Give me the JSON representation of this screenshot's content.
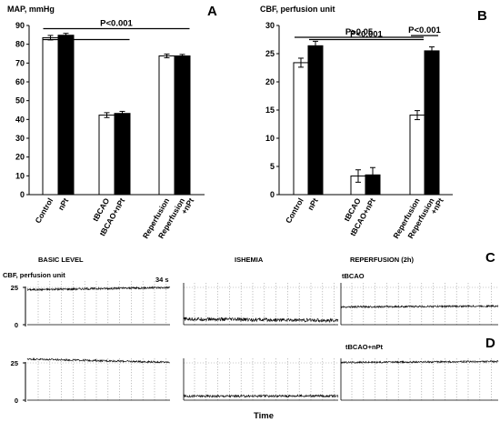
{
  "chart_data": [
    {
      "type": "bar",
      "panel": "A",
      "ylabel": "MAP, mmHg",
      "ylim": [
        0,
        90
      ],
      "yticks": [
        0,
        10,
        20,
        30,
        40,
        50,
        60,
        70,
        80,
        90
      ],
      "categories": [
        "Control",
        "nPt",
        "tBCAO",
        "tBCAO+nPt",
        "Reperfusion",
        "Reperfusion +nPt"
      ],
      "groups": [
        {
          "bars": [
            {
              "category": "Control",
              "value": 83.5,
              "err": 1.2,
              "fill": "#ffffff"
            },
            {
              "category": "nPt",
              "value": 84.8,
              "err": 1.0,
              "fill": "#000000"
            }
          ]
        },
        {
          "bars": [
            {
              "category": "tBCAO",
              "value": 42.3,
              "err": 1.3,
              "fill": "#ffffff"
            },
            {
              "category": "tBCAO+nPt",
              "value": 43.2,
              "err": 1.1,
              "fill": "#000000"
            }
          ]
        },
        {
          "bars": [
            {
              "category": "Reperfusion",
              "value": 73.8,
              "err": 1.0,
              "fill": "#ffffff"
            },
            {
              "category": "Reperfusion +nPt",
              "value": 73.8,
              "err": 0.8,
              "fill": "#000000"
            }
          ]
        }
      ],
      "annotations": [
        {
          "text": "P<0.001",
          "y": 88.3,
          "span": [
            "Control",
            "Reperfusion +nPt"
          ]
        },
        {
          "text": "",
          "y": 82.5,
          "span": [
            "Control",
            "tBCAO+nPt"
          ]
        }
      ]
    },
    {
      "type": "bar",
      "panel": "B",
      "ylabel": "CBF, perfusion unit",
      "ylim": [
        0,
        30
      ],
      "yticks": [
        0,
        5,
        10,
        15,
        20,
        25,
        30
      ],
      "categories": [
        "Control",
        "nPt",
        "tBCAO",
        "tBCAO+nPt",
        "Reperfusion",
        "Reperfusion +nPt"
      ],
      "groups": [
        {
          "bars": [
            {
              "category": "Control",
              "value": 23.4,
              "err": 0.8,
              "fill": "#ffffff"
            },
            {
              "category": "nPt",
              "value": 26.4,
              "err": 0.8,
              "fill": "#000000"
            }
          ]
        },
        {
          "bars": [
            {
              "category": "tBCAO",
              "value": 3.3,
              "err": 1.1,
              "fill": "#ffffff"
            },
            {
              "category": "tBCAO+nPt",
              "value": 3.5,
              "err": 1.3,
              "fill": "#000000"
            }
          ]
        },
        {
          "bars": [
            {
              "category": "Reperfusion",
              "value": 14.1,
              "err": 0.8,
              "fill": "#ffffff"
            },
            {
              "category": "Reperfusion +nPt",
              "value": 25.5,
              "err": 0.7,
              "fill": "#000000"
            }
          ]
        }
      ],
      "annotations": [
        {
          "text": "P>0.05",
          "y": 27.9,
          "span": [
            "Control",
            "Reperfusion"
          ]
        },
        {
          "text": "P<0.001",
          "y": 28.2,
          "span": [
            "Reperfusion",
            "Reperfusion +nPt"
          ]
        },
        {
          "text": "P<0.001",
          "y": 27.5,
          "span": [
            "nPt",
            "Reperfusion"
          ]
        }
      ]
    }
  ],
  "traces": {
    "titles": {
      "basic": "BASIC LEVEL",
      "ischemia": "ISHEMIA",
      "reperfusion": "REPERFUSION (2h)"
    },
    "ylabel": "CBF, perfusion unit",
    "time_label": "34 s",
    "xlabel": "Time",
    "yticks": [
      0,
      25
    ],
    "ylim": [
      0,
      30
    ],
    "rows": [
      {
        "panel": "C",
        "label": "tBCAO",
        "segments": [
          {
            "mean": 24.2,
            "noise": 0.7,
            "slope": 1.5
          },
          {
            "mean": 3.3,
            "noise": 1.2,
            "slope": -1.0
          },
          {
            "mean": 12.2,
            "noise": 0.6,
            "slope": 0.6
          }
        ]
      },
      {
        "panel": "D",
        "label": "tBCAO+nPt",
        "segments": [
          {
            "mean": 26.5,
            "noise": 0.6,
            "slope": -2.2
          },
          {
            "mean": 2.8,
            "noise": 0.8,
            "slope": 0.2
          },
          {
            "mean": 25.6,
            "noise": 0.6,
            "slope": 0.6
          }
        ]
      }
    ]
  }
}
